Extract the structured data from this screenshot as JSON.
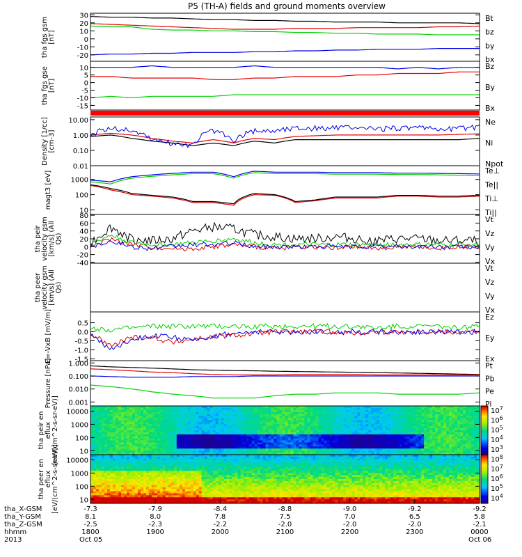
{
  "title": "P5 (TH-A) fields and ground moments overview",
  "chart_data": [
    {
      "type": "line",
      "ylabel": "tha fgs gsm [nT]",
      "ylim": [
        -28,
        32
      ],
      "yticks": [
        30,
        20,
        10,
        0,
        -10,
        -20
      ],
      "series": [
        {
          "name": "Bt",
          "color": "#000000",
          "values": [
            28,
            27,
            27,
            26,
            26,
            25,
            24,
            24,
            23,
            23,
            22,
            22,
            21,
            21,
            21,
            20,
            20,
            20,
            20,
            19
          ]
        },
        {
          "name": "bz",
          "color": "#e00000",
          "values": [
            19,
            18,
            17,
            16,
            15,
            14,
            13,
            12,
            12,
            12,
            13,
            13,
            13,
            14,
            14,
            14,
            14,
            15,
            15,
            16
          ]
        },
        {
          "name": "by",
          "color": "#00d000",
          "values": [
            16,
            15,
            15,
            12,
            11,
            11,
            10,
            10,
            9,
            9,
            8,
            8,
            7,
            7,
            6,
            6,
            6,
            5,
            5,
            5
          ]
        },
        {
          "name": "bx",
          "color": "#0000e0",
          "values": [
            -20,
            -19,
            -19,
            -18,
            -18,
            -17,
            -17,
            -17,
            -16,
            -16,
            -15,
            -15,
            -14,
            -14,
            -13,
            -13,
            -13,
            -12,
            -12,
            -12
          ]
        }
      ]
    },
    {
      "type": "line",
      "ylabel": "tha fgs gse [nT]",
      "ylim": [
        -18,
        14
      ],
      "yticks": [
        10,
        5,
        0,
        -5,
        -10,
        -15
      ],
      "series": [
        {
          "name": "Bz",
          "color": "#e00000",
          "values": [
            4,
            4,
            3,
            3,
            3,
            3,
            2,
            2,
            3,
            3,
            4,
            4,
            4,
            5,
            5,
            6,
            6,
            6,
            7,
            7
          ]
        },
        {
          "name": "By",
          "color": "#00d000",
          "values": [
            -10,
            -9,
            -10,
            -9,
            -9,
            -9,
            -9,
            -8,
            -8,
            -8,
            -8,
            -8,
            -8,
            -8,
            -8,
            -8,
            -8,
            -8,
            -8,
            -8
          ]
        },
        {
          "name": "Bx",
          "color": "#0000e0",
          "values": [
            10,
            10,
            10,
            11,
            10,
            10,
            10,
            10,
            11,
            10,
            10,
            10,
            10,
            10,
            10,
            9,
            10,
            9,
            10,
            10
          ]
        }
      ]
    },
    {
      "type": "line",
      "ylabel": "Density [1/cc] [cm-3]",
      "scale": "log",
      "ylim": [
        0.01,
        15
      ],
      "yticks": [
        "10.00",
        "1.00",
        "0.10",
        "0.01"
      ],
      "series": [
        {
          "name": "Ne",
          "color": "#e00000",
          "values": [
            1.0,
            1.3,
            1.0,
            0.6,
            0.4,
            0.3,
            0.5,
            0.3,
            0.6,
            0.5,
            0.8,
            0.9,
            1.0,
            1.0,
            1.0,
            1.0,
            1.0,
            1.0,
            1.1,
            1.2
          ]
        },
        {
          "name": "Ni",
          "color": "#000000",
          "values": [
            0.8,
            1.0,
            0.6,
            0.4,
            0.3,
            0.2,
            0.3,
            0.2,
            0.4,
            0.3,
            0.5,
            0.5,
            0.5,
            0.5,
            0.5,
            0.5,
            0.5,
            0.5,
            0.5,
            0.6
          ]
        },
        {
          "name": "Npot",
          "color": "#0000e0",
          "values": [
            1.0,
            3.0,
            2.0,
            0.5,
            0.3,
            0.2,
            2.0,
            0.3,
            2.0,
            2.0,
            3.0,
            3.0,
            3.0,
            3.0,
            2.5,
            3.0,
            3.0,
            2.5,
            3.0,
            3.5
          ]
        }
      ]
    },
    {
      "type": "line",
      "ylabel": "magt3 [eV]",
      "scale": "log",
      "ylim": [
        5,
        8000
      ],
      "yticks": [
        "1000",
        "100",
        "10"
      ],
      "series": [
        {
          "name": "Te⊥",
          "color": "#e00000",
          "values": [
            400,
            200,
            100,
            80,
            60,
            30,
            30,
            20,
            100,
            90,
            30,
            40,
            60,
            60,
            60,
            80,
            80,
            70,
            70,
            80
          ]
        },
        {
          "name": "Te||",
          "color": "#000000",
          "values": [
            450,
            250,
            120,
            90,
            70,
            35,
            35,
            25,
            120,
            100,
            35,
            45,
            70,
            70,
            70,
            90,
            90,
            80,
            80,
            90
          ]
        },
        {
          "name": "Ti⊥",
          "color": "#0000e0",
          "values": [
            900,
            700,
            1500,
            2000,
            2500,
            3000,
            3000,
            1500,
            3500,
            3000,
            3000,
            3000,
            2800,
            2800,
            2800,
            2600,
            2600,
            2500,
            2400,
            2300
          ]
        },
        {
          "name": "Ti||",
          "color": "#00d000",
          "values": [
            700,
            500,
            1200,
            1600,
            2000,
            2400,
            2400,
            1200,
            2800,
            2400,
            2400,
            2400,
            2200,
            2200,
            2200,
            2100,
            2100,
            2000,
            1900,
            1800
          ]
        }
      ]
    },
    {
      "type": "line",
      "ylabel": "tha peir velocity gsm [km/s] (All Qs)",
      "ylim": [
        -42,
        82
      ],
      "yticks": [
        80,
        60,
        40,
        20,
        0,
        -20,
        -40
      ],
      "series": [
        {
          "name": "Vt",
          "color": "#000000",
          "values": [
            10,
            50,
            20,
            15,
            20,
            40,
            50,
            45,
            30,
            25,
            20,
            20,
            25,
            20,
            15,
            20,
            20,
            15,
            15,
            15
          ]
        },
        {
          "name": "Vz",
          "color": "#e00000",
          "values": [
            0,
            20,
            5,
            0,
            -5,
            -5,
            0,
            5,
            0,
            -5,
            0,
            0,
            -5,
            0,
            -5,
            0,
            0,
            -5,
            0,
            0
          ]
        },
        {
          "name": "Vy",
          "color": "#00d000",
          "values": [
            5,
            30,
            10,
            5,
            5,
            10,
            15,
            20,
            10,
            5,
            5,
            5,
            5,
            5,
            5,
            5,
            5,
            5,
            5,
            5
          ]
        },
        {
          "name": "Vx",
          "color": "#0000e0",
          "values": [
            0,
            15,
            0,
            -5,
            0,
            5,
            5,
            10,
            0,
            0,
            0,
            0,
            0,
            0,
            0,
            0,
            0,
            0,
            0,
            0
          ]
        }
      ]
    },
    {
      "type": "line",
      "ylabel": "tha peer velocity gsm [km/s] (All Qs)",
      "series": [
        {
          "name": "Vt",
          "color": "#000000",
          "values": []
        },
        {
          "name": "Vz",
          "color": "#e00000",
          "values": []
        },
        {
          "name": "Vy",
          "color": "#00d000",
          "values": []
        },
        {
          "name": "Vx",
          "color": "#0000e0",
          "values": []
        }
      ]
    },
    {
      "type": "line",
      "ylabel": "E=-VxB [mV/m]",
      "ylim": [
        -1.6,
        1.1
      ],
      "yticks": [
        "0.5",
        "0.0",
        "-0.5",
        "-1.0",
        "-1.5"
      ],
      "series": [
        {
          "name": "Ez",
          "color": "#e00000",
          "values": [
            -0.1,
            -0.8,
            -0.3,
            -0.3,
            -0.6,
            -0.4,
            -0.3,
            -0.2,
            -0.1,
            0.0,
            0.0,
            0.0,
            0.0,
            -0.1,
            0.0,
            0.0,
            0.0,
            0.0,
            0.0,
            0.0
          ]
        },
        {
          "name": "Ey",
          "color": "#00d000",
          "values": [
            0.2,
            0.1,
            0.2,
            0.3,
            0.3,
            0.3,
            0.3,
            0.3,
            0.3,
            0.3,
            0.3,
            0.3,
            0.3,
            0.3,
            0.2,
            0.3,
            0.3,
            0.3,
            0.2,
            0.3
          ]
        },
        {
          "name": "Ex",
          "color": "#0000e0",
          "values": [
            -0.1,
            -1.0,
            -0.4,
            -0.2,
            -0.3,
            -0.5,
            -0.2,
            -0.1,
            0.0,
            0.0,
            0.0,
            0.0,
            0.0,
            0.0,
            0.0,
            0.0,
            0.0,
            0.0,
            0.0,
            0.0
          ]
        }
      ]
    },
    {
      "type": "line",
      "ylabel": "Pressure [nPa]",
      "scale": "log",
      "ylim": [
        0.0005,
        1.5
      ],
      "yticks": [
        "1.000",
        "0.100",
        "0.010",
        "0.001"
      ],
      "series": [
        {
          "name": "Pt",
          "color": "#000000",
          "values": [
            0.6,
            0.5,
            0.45,
            0.4,
            0.35,
            0.3,
            0.28,
            0.26,
            0.25,
            0.23,
            0.22,
            0.21,
            0.2,
            0.19,
            0.18,
            0.17,
            0.16,
            0.15,
            0.14,
            0.13
          ]
        },
        {
          "name": "Pb",
          "color": "#e00000",
          "values": [
            0.35,
            0.3,
            0.25,
            0.2,
            0.18,
            0.15,
            0.13,
            0.12,
            0.12,
            0.12,
            0.13,
            0.13,
            0.13,
            0.13,
            0.12,
            0.12,
            0.12,
            0.12,
            0.12,
            0.12
          ]
        },
        {
          "name": "Pe",
          "color": "#00d000",
          "values": [
            0.02,
            0.015,
            0.01,
            0.006,
            0.004,
            0.003,
            0.002,
            0.002,
            0.002,
            0.003,
            0.004,
            0.004,
            0.005,
            0.005,
            0.005,
            0.004,
            0.004,
            0.004,
            0.004,
            0.005
          ]
        },
        {
          "name": "Pi",
          "color": "#0000e0",
          "values": [
            0.1,
            0.09,
            0.08,
            0.08,
            0.08,
            0.09,
            0.09,
            0.09,
            0.1,
            0.1,
            0.1,
            0.1,
            0.1,
            0.1,
            0.1,
            0.1,
            0.1,
            0.1,
            0.1,
            0.1
          ]
        }
      ]
    },
    {
      "type": "heatmap",
      "ylabel": "tha peir en eflux [eV/(cm^2-s-sr-eV)]",
      "scale": "log",
      "ylim": [
        5,
        25000
      ],
      "yticks": [
        "10000",
        "1000",
        "100",
        "10"
      ],
      "colorbar": {
        "ticks": [
          "10^7",
          "10^6",
          "10^5",
          "10^4",
          "10^3"
        ],
        "range_log": [
          2.5,
          7.5
        ]
      }
    },
    {
      "type": "heatmap",
      "ylabel": "tha peer en eflux [eV/(cm^2-s-sr-eV)]",
      "scale": "log",
      "ylim": [
        5,
        25000
      ],
      "yticks": [
        "10000",
        "1000",
        "100",
        "10"
      ],
      "colorbar": {
        "ticks": [
          "10^8",
          "10^7",
          "10^6",
          "10^5",
          "10^4"
        ],
        "range_log": [
          3.5,
          8.2
        ]
      }
    }
  ],
  "xaxis": {
    "rows": [
      {
        "label": "tha_X-GSM",
        "values": [
          "-7.3",
          "-7.9",
          "-8.4",
          "-8.8",
          "-9.0",
          "-9.2",
          "-9.2"
        ]
      },
      {
        "label": "tha_Y-GSM",
        "values": [
          "8.1",
          "8.0",
          "7.8",
          "7.5",
          "7.0",
          "6.5",
          "5.8"
        ]
      },
      {
        "label": "tha_Z-GSM",
        "values": [
          "-2.5",
          "-2.3",
          "-2.2",
          "-2.0",
          "-2.0",
          "-2.0",
          "-2.1"
        ]
      },
      {
        "label": "hhmm",
        "values": [
          "1800",
          "1900",
          "2000",
          "2100",
          "2200",
          "2300",
          "0000"
        ]
      },
      {
        "label": "2013",
        "values": [
          "Oct 05",
          "",
          "",
          "",
          "",
          "",
          "Oct 06"
        ]
      }
    ]
  }
}
